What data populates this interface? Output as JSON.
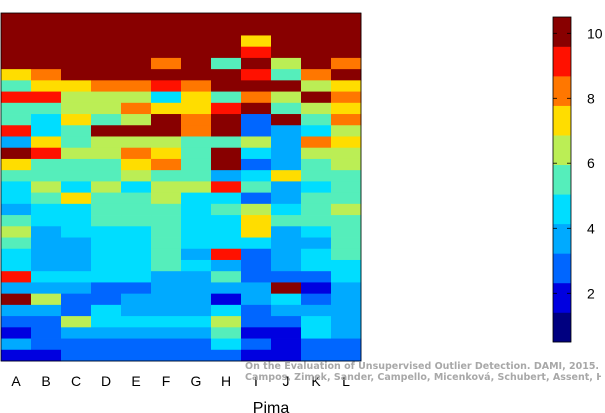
{
  "chart_data": {
    "type": "heatmap",
    "title": "",
    "xlabel": "Pima",
    "ylabel": "",
    "categories": [
      "A",
      "B",
      "C",
      "D",
      "E",
      "F",
      "G",
      "H",
      "I",
      "J",
      "K",
      "L"
    ],
    "colorbar": {
      "range": [
        0.5,
        10.5
      ],
      "ticks": [
        2,
        4,
        6,
        8,
        10
      ],
      "colormap": "jet"
    },
    "columns": [
      {
        "name": "A",
        "values": [
          10,
          10,
          10,
          10,
          10,
          7,
          5,
          9,
          5,
          5,
          9,
          3,
          10,
          7,
          5,
          4,
          4,
          3,
          5,
          6,
          5,
          4,
          4,
          9,
          3,
          10,
          3,
          2,
          1,
          3,
          1
        ]
      },
      {
        "name": "B",
        "values": [
          10,
          10,
          10,
          10,
          10,
          8,
          7,
          9,
          5,
          4,
          4,
          7,
          9,
          5,
          5,
          6,
          5,
          4,
          4,
          3,
          3,
          3,
          3,
          4,
          3,
          6,
          3,
          2,
          2,
          2,
          1
        ]
      },
      {
        "name": "C",
        "values": [
          10,
          10,
          10,
          10,
          10,
          10,
          7,
          6,
          6,
          7,
          5,
          5,
          6,
          5,
          5,
          4,
          7,
          4,
          4,
          4,
          3,
          3,
          3,
          4,
          3,
          2,
          2,
          6,
          3,
          2,
          2
        ]
      },
      {
        "name": "D",
        "values": [
          10,
          10,
          10,
          10,
          10,
          10,
          8,
          6,
          6,
          5,
          10,
          6,
          6,
          5,
          5,
          6,
          5,
          5,
          5,
          4,
          4,
          4,
          4,
          4,
          2,
          2,
          4,
          4,
          3,
          2,
          2
        ]
      },
      {
        "name": "E",
        "values": [
          10,
          10,
          10,
          10,
          10,
          10,
          8,
          6,
          8,
          6,
          10,
          6,
          8,
          7,
          6,
          4,
          5,
          5,
          5,
          4,
          4,
          4,
          4,
          4,
          2,
          3,
          3,
          4,
          3,
          2,
          2
        ]
      },
      {
        "name": "F",
        "values": [
          10,
          10,
          10,
          10,
          8,
          10,
          9,
          4,
          7,
          10,
          10,
          6,
          7,
          8,
          5,
          6,
          6,
          5,
          5,
          5,
          5,
          5,
          5,
          3,
          3,
          3,
          3,
          4,
          3,
          2,
          2
        ]
      },
      {
        "name": "G",
        "values": [
          10,
          10,
          10,
          10,
          10,
          10,
          8,
          7,
          7,
          8,
          8,
          5,
          5,
          5,
          5,
          6,
          4,
          4,
          4,
          4,
          4,
          3,
          4,
          3,
          3,
          3,
          3,
          4,
          3,
          2,
          2
        ]
      },
      {
        "name": "H",
        "values": [
          10,
          10,
          10,
          10,
          5,
          10,
          10,
          5,
          9,
          10,
          10,
          5,
          10,
          10,
          3,
          9,
          4,
          5,
          4,
          4,
          4,
          9,
          3,
          5,
          3,
          1,
          4,
          6,
          5,
          4,
          2
        ]
      },
      {
        "name": "I",
        "values": [
          10,
          10,
          7,
          9,
          10,
          9,
          10,
          8,
          10,
          2,
          2,
          6,
          4,
          2,
          4,
          5,
          2,
          6,
          7,
          7,
          4,
          2,
          2,
          2,
          3,
          3,
          2,
          2,
          1,
          2,
          1
        ]
      },
      {
        "name": "J",
        "values": [
          10,
          10,
          10,
          10,
          6,
          5,
          10,
          6,
          5,
          10,
          3,
          3,
          3,
          3,
          7,
          3,
          3,
          4,
          5,
          3,
          3,
          3,
          3,
          2,
          10,
          4,
          3,
          2,
          1,
          1,
          1
        ]
      },
      {
        "name": "K",
        "values": [
          10,
          10,
          10,
          10,
          10,
          8,
          6,
          10,
          6,
          5,
          4,
          8,
          6,
          5,
          5,
          4,
          5,
          5,
          5,
          4,
          3,
          4,
          4,
          2,
          1,
          2,
          3,
          4,
          4,
          2,
          2
        ]
      },
      {
        "name": "L",
        "values": [
          10,
          10,
          10,
          10,
          8,
          10,
          7,
          8,
          7,
          8,
          6,
          7,
          6,
          6,
          5,
          5,
          5,
          6,
          5,
          5,
          5,
          5,
          4,
          4,
          3,
          3,
          3,
          3,
          3,
          2,
          2
        ]
      }
    ]
  },
  "credit": {
    "line1": "On the Evaluation of Unsupervised Outlier Detection. DAMI, 2015.",
    "line2": "Campos, Zimek, Sander, Campello, Micenková, Schubert, Assent, Houle"
  }
}
